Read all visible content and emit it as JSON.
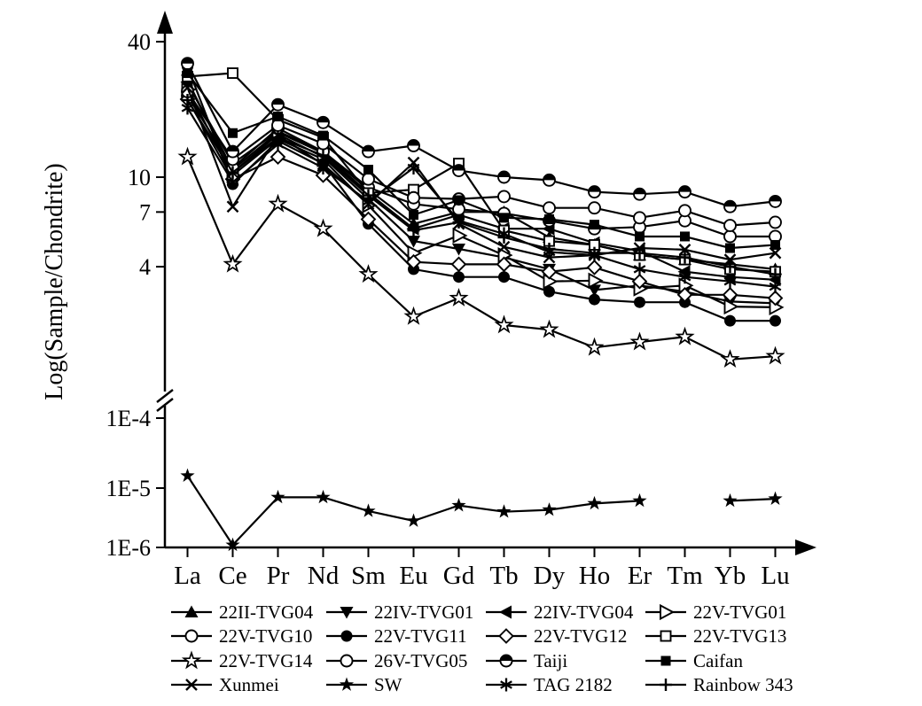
{
  "chart_data": {
    "type": "line",
    "title": "",
    "xlabel": "",
    "ylabel": "Log(Sample/Chondrite)",
    "grid": false,
    "legend_position": "bottom",
    "axis_color": "#000000",
    "background_color": "#ffffff",
    "x_categories": [
      "La",
      "Ce",
      "Pr",
      "Nd",
      "Sm",
      "Eu",
      "Gd",
      "Tb",
      "Dy",
      "Ho",
      "Er",
      "Tm",
      "Yb",
      "Lu"
    ],
    "y_axis": {
      "scale": "log",
      "has_break": true,
      "upper_ticks": [
        {
          "label": "40",
          "value": 40
        },
        {
          "label": "10",
          "value": 10
        },
        {
          "label": "7",
          "value": 7
        },
        {
          "label": "4",
          "value": 4
        }
      ],
      "lower_ticks": [
        {
          "label": "1E-4",
          "value": 0.0001
        },
        {
          "label": "1E-5",
          "value": 1e-05
        },
        {
          "label": "1E-6",
          "value": 1e-06
        }
      ]
    },
    "series": [
      {
        "name": "22II-TVG04",
        "marker": "triangle-up-filled",
        "values": [
          26,
          11.5,
          16,
          13,
          8.8,
          6.2,
          7.0,
          7.0,
          5.4,
          5.0,
          4.5,
          4.3,
          4.1,
          3.9
        ]
      },
      {
        "name": "22IV-TVG01",
        "marker": "triangle-down-filled",
        "values": [
          27,
          10.5,
          15.5,
          12.3,
          8.0,
          5.2,
          4.8,
          4.4,
          3.9,
          3.15,
          3.3,
          3.1,
          2.8,
          2.75
        ]
      },
      {
        "name": "22IV-TVG04",
        "marker": "triangle-left-filled",
        "values": [
          26.5,
          10.8,
          15.8,
          12.8,
          8.5,
          5.9,
          6.8,
          5.9,
          5.9,
          5.1,
          4.7,
          3.8,
          3.6,
          3.5
        ]
      },
      {
        "name": "22V-TVG01",
        "marker": "triangle-right-open",
        "values": [
          24.5,
          10.2,
          14.8,
          12.0,
          7.5,
          4.6,
          5.5,
          4.5,
          3.44,
          3.47,
          3.2,
          3.3,
          2.66,
          2.64
        ]
      },
      {
        "name": "22V-TVG10",
        "marker": "circle-open",
        "values": [
          23,
          11,
          16.5,
          13.0,
          9.0,
          7.6,
          7.2,
          6.9,
          6.4,
          5.9,
          6.0,
          6.4,
          5.45,
          5.45
        ]
      },
      {
        "name": "22V-TVG11",
        "marker": "circle-filled",
        "values": [
          31,
          9.3,
          14.5,
          11.5,
          6.2,
          3.9,
          3.6,
          3.6,
          3.1,
          2.86,
          2.78,
          2.78,
          2.3,
          2.3
        ]
      },
      {
        "name": "22V-TVG12",
        "marker": "diamond-open",
        "values": [
          22.2,
          9.8,
          12.3,
          10.2,
          6.5,
          4.2,
          4.1,
          4.1,
          3.8,
          3.97,
          3.44,
          3.0,
          3.0,
          2.9
        ]
      },
      {
        "name": "22V-TVG13",
        "marker": "square-open",
        "values": [
          28,
          29,
          18,
          15.0,
          8.5,
          8.8,
          11.5,
          5.8,
          5.2,
          5.0,
          4.5,
          4.3,
          3.9,
          3.8
        ]
      },
      {
        "name": "22V-TVG14",
        "marker": "star-open",
        "values": [
          12.3,
          4.1,
          7.6,
          5.9,
          3.7,
          2.4,
          2.9,
          2.2,
          2.1,
          1.75,
          1.85,
          1.95,
          1.55,
          1.6
        ]
      },
      {
        "name": "26V-TVG05",
        "marker": "circle-open",
        "values": [
          24,
          12,
          17,
          14.1,
          9.8,
          8.1,
          8.0,
          8.2,
          7.3,
          7.3,
          6.6,
          7.1,
          6.1,
          6.3
        ]
      },
      {
        "name": "Taiji",
        "marker": "circle-half",
        "values": [
          32,
          13,
          21,
          17.5,
          13,
          13.8,
          10.7,
          10,
          9.7,
          8.6,
          8.4,
          8.6,
          7.4,
          7.8
        ]
      },
      {
        "name": "Caifan",
        "marker": "square-filled",
        "values": [
          29,
          15.7,
          18.6,
          15.3,
          10.8,
          6.8,
          7.9,
          6.6,
          6.5,
          6.15,
          5.45,
          5.45,
          4.84,
          5.0
        ]
      },
      {
        "name": "Xunmei",
        "marker": "x",
        "values": [
          25,
          7.4,
          15.3,
          11.4,
          7.6,
          11.6,
          6.2,
          4.9,
          4.4,
          4.5,
          4.84,
          4.76,
          4.3,
          4.6
        ]
      },
      {
        "name": "SW",
        "marker": "star-filled",
        "values": [
          1.5e-05,
          1.1e-06,
          7e-06,
          7e-06,
          4.1e-06,
          2.8e-06,
          5.1e-06,
          4e-06,
          4.3e-06,
          5.5e-06,
          6.1e-06,
          null,
          6.1e-06,
          6.6e-06
        ]
      },
      {
        "name": "TAG 2182",
        "marker": "asterisk",
        "values": [
          20.3,
          9.5,
          14,
          11.0,
          7.8,
          11.0,
          6.4,
          5.6,
          4.65,
          4.5,
          3.9,
          3.6,
          3.44,
          3.26
        ]
      },
      {
        "name": "Rainbow 343",
        "marker": "plus",
        "values": [
          22,
          10.5,
          15,
          12.5,
          8.3,
          5.8,
          6.3,
          5.4,
          4.8,
          4.6,
          4.6,
          4.4,
          4.0,
          3.7
        ]
      }
    ]
  }
}
